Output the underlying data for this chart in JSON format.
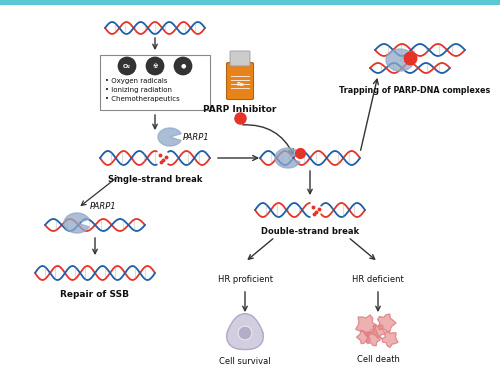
{
  "bg_color": "#ffffff",
  "border_color": "#5bc8d4",
  "dna_red": "#e63329",
  "dna_blue": "#1a5fa8",
  "arrow_color": "#333333",
  "parp_color": "#8fa8c8",
  "parp_inhibitor_red": "#e63329",
  "parp_inhibitor_orange": "#e8831a",
  "text_color": "#111111",
  "cell_survival_color": "#a89ec0",
  "cell_death_color": "#e08080",
  "labels": {
    "single_strand": "Single-strand break",
    "double_strand": "Double-strand break",
    "repair_ssb": "Repair of SSB",
    "parp_inhibitor": "PARP Inhibitor",
    "trapping": "Trapping of PARP-DNA complexes",
    "hr_proficient": "HR proficient",
    "hr_deficient": "HR deficient",
    "cell_survival": "Cell survival",
    "cell_death": "Cell death",
    "parp1_label1": "PARP1",
    "parp1_label2": "PARP1",
    "box_line1": "Oxygen radicals",
    "box_line2": "Ionizing radiation",
    "box_line3": "Chemotherapeutics"
  },
  "figsize": [
    5.0,
    3.71
  ],
  "dpi": 100
}
